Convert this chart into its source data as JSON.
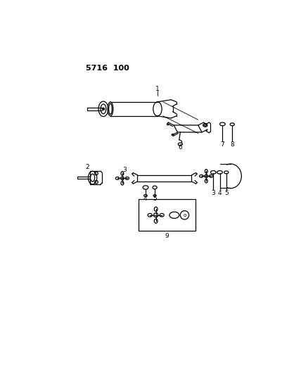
{
  "title": "5716  100",
  "bg_color": "#ffffff",
  "line_color": "#000000",
  "figsize": [
    4.28,
    5.33
  ],
  "dpi": 100
}
